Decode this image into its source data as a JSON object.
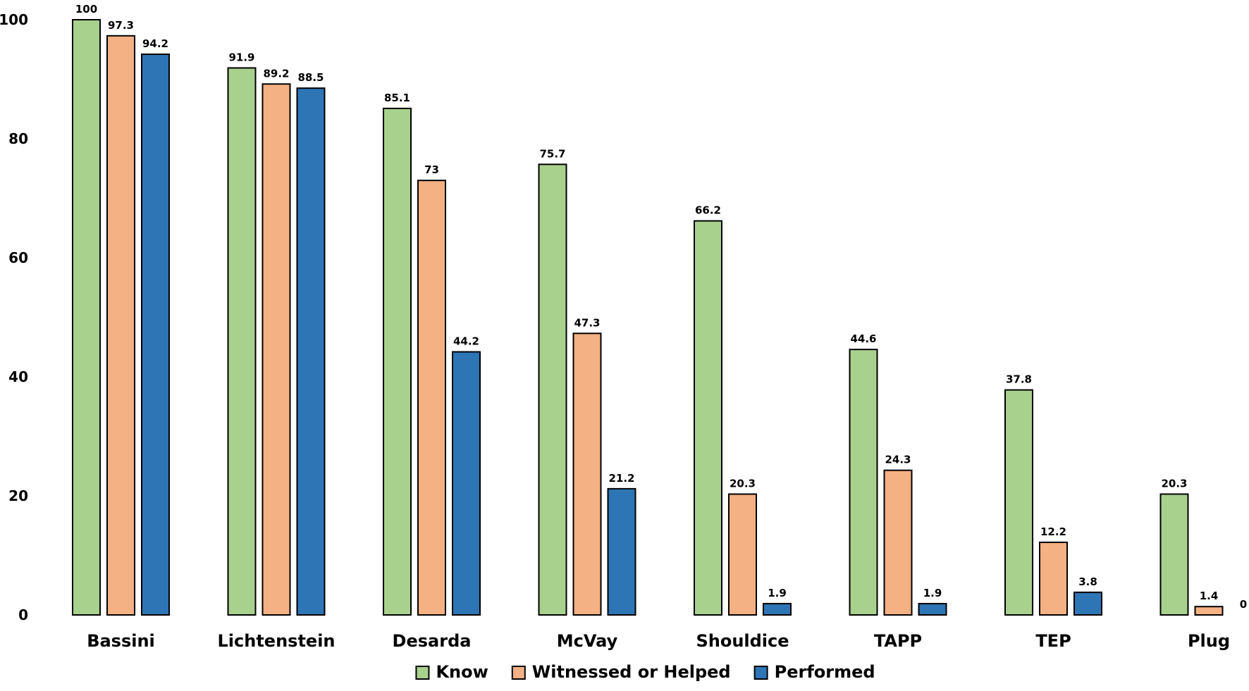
{
  "chart_data": {
    "type": "bar",
    "title": "",
    "xlabel": "",
    "ylabel": "",
    "ylim": [
      0,
      100
    ],
    "yticks": [
      0,
      20,
      40,
      60,
      80,
      100
    ],
    "grid": false,
    "legend_position": "bottom",
    "categories": [
      "Bassini",
      "Lichtenstein",
      "Desarda",
      "McVay",
      "Shouldice",
      "TAPP",
      "TEP",
      "Plug"
    ],
    "series": [
      {
        "name": "Know",
        "color": "#a9d18e",
        "values": [
          100,
          91.9,
          85.1,
          75.7,
          66.2,
          44.6,
          37.8,
          20.3
        ]
      },
      {
        "name": "Witnessed or Helped",
        "color": "#f4b183",
        "values": [
          97.3,
          89.2,
          73,
          47.3,
          20.3,
          24.3,
          12.2,
          1.4
        ]
      },
      {
        "name": "Performed",
        "color": "#2e75b6",
        "values": [
          94.2,
          88.5,
          44.2,
          21.2,
          1.9,
          1.9,
          3.8,
          0
        ]
      }
    ]
  }
}
